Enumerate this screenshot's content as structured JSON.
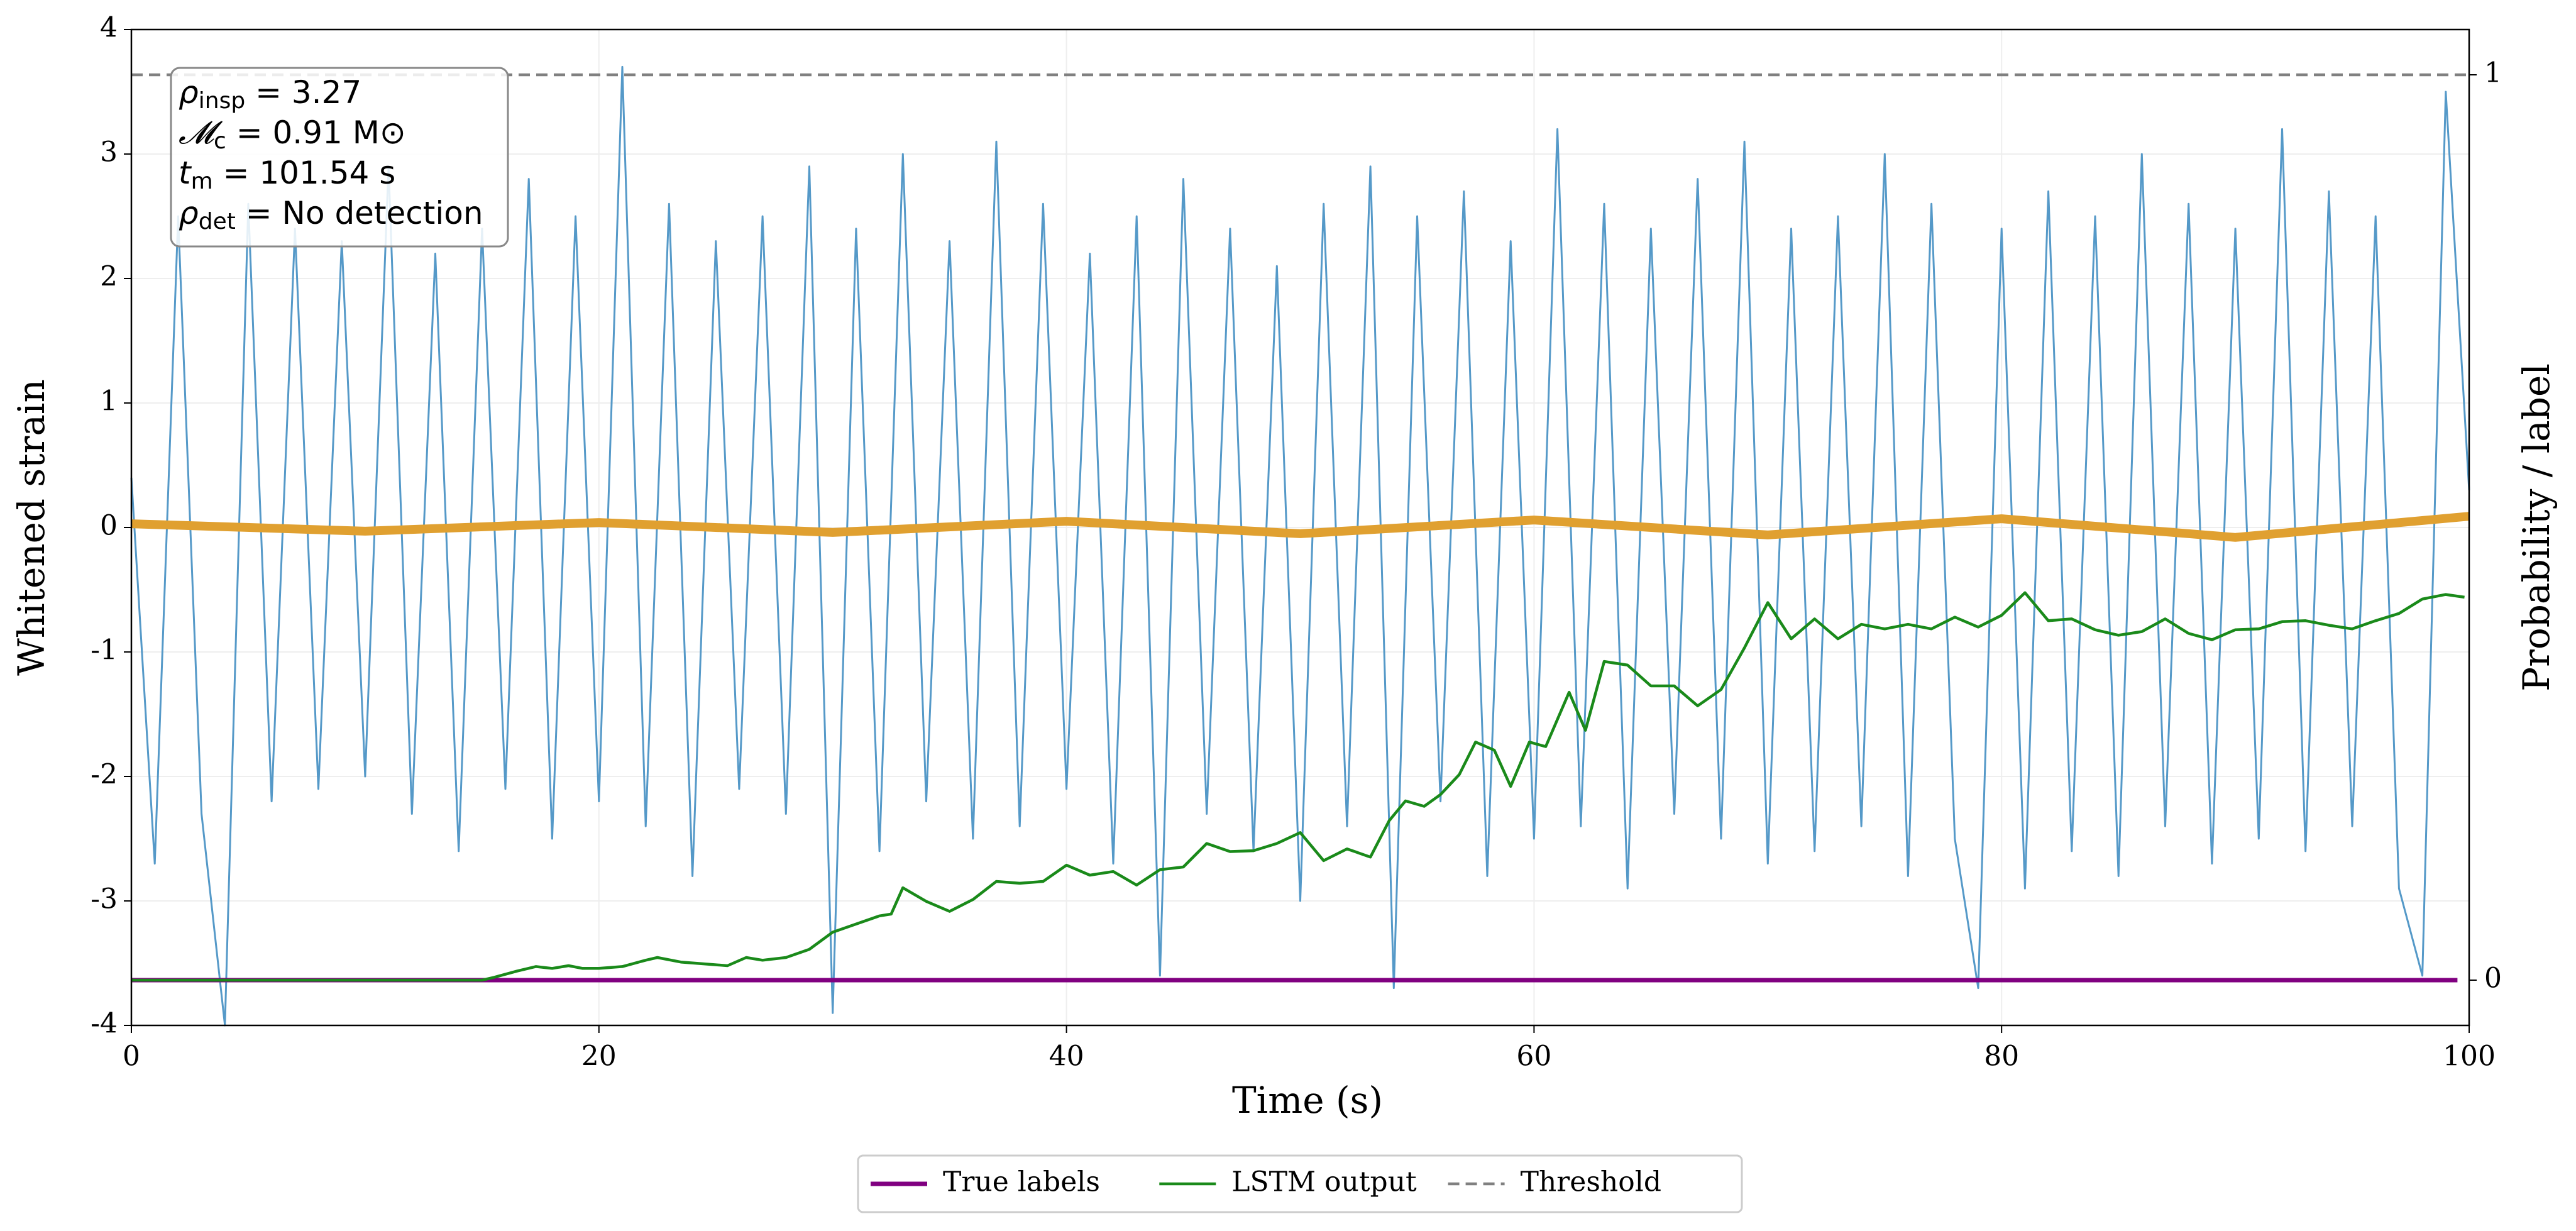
{
  "chart_data": {
    "type": "line",
    "xlabel": "Time (s)",
    "ylabel": "Whitened strain",
    "y2label": "Probability / label",
    "xlim": [
      0,
      100
    ],
    "ylim": [
      -4,
      4
    ],
    "y2lim": [
      -0.05,
      1.05
    ],
    "xticks": [
      0,
      20,
      40,
      60,
      80,
      100
    ],
    "yticks": [
      -4,
      -3,
      -2,
      -1,
      0,
      1,
      2,
      3,
      4
    ],
    "y2ticks": [
      0,
      1
    ],
    "grid": true,
    "legend": "bottom",
    "annotation": [
      {
        "main": "ρ",
        "sub": "insp",
        "rest": " = 3.27"
      },
      {
        "main": "𝓜",
        "sub": "c",
        "rest": " = 0.91 M⊙"
      },
      {
        "main": "t",
        "sub": "m",
        "rest": " = 101.54 s"
      },
      {
        "main": "ρ",
        "sub": "det",
        "rest": " = No detection"
      }
    ],
    "series": [
      {
        "color": "#5599c8",
        "x": [
          0,
          1,
          2,
          3,
          4,
          5,
          6,
          7,
          8,
          9,
          10,
          11,
          12,
          13,
          14,
          15,
          16,
          17,
          18,
          19,
          20,
          21,
          22,
          23,
          24,
          25,
          26,
          27,
          28,
          29,
          30,
          31,
          32,
          33,
          34,
          35,
          36,
          37,
          38,
          39,
          40,
          41,
          42,
          43,
          44,
          45,
          46,
          47,
          48,
          49,
          50,
          51,
          52,
          53,
          54,
          55,
          56,
          57,
          58,
          59,
          60,
          61,
          62,
          63,
          64,
          65,
          66,
          67,
          68,
          69,
          70,
          71,
          72,
          73,
          74,
          75,
          76,
          77,
          78,
          79,
          80,
          81,
          82,
          83,
          84,
          85,
          86,
          87,
          88,
          89,
          90,
          91,
          92,
          93,
          94,
          95,
          96,
          97,
          98,
          99,
          100
        ],
        "values": [
          0.4,
          -2.7,
          2.5,
          -2.3,
          -4.0,
          2.6,
          -2.2,
          2.4,
          -2.1,
          2.3,
          -2.0,
          2.9,
          -2.3,
          2.2,
          -2.6,
          2.4,
          -2.1,
          2.8,
          -2.5,
          2.5,
          -2.2,
          3.7,
          -2.4,
          2.6,
          -2.8,
          2.3,
          -2.1,
          2.5,
          -2.3,
          2.9,
          -3.9,
          2.4,
          -2.6,
          3.0,
          -2.2,
          2.3,
          -2.5,
          3.1,
          -2.4,
          2.6,
          -2.1,
          2.2,
          -2.7,
          2.5,
          -3.6,
          2.8,
          -2.3,
          2.4,
          -2.6,
          2.1,
          -3.0,
          2.6,
          -2.4,
          2.9,
          -3.7,
          2.5,
          -2.2,
          2.7,
          -2.8,
          2.3,
          -2.5,
          3.2,
          -2.4,
          2.6,
          -2.9,
          2.4,
          -2.3,
          2.8,
          -2.5,
          3.1,
          -2.7,
          2.4,
          -2.6,
          2.5,
          -2.4,
          3.0,
          -2.8,
          2.6,
          -2.5,
          -3.7,
          2.4,
          -2.9,
          2.7,
          -2.6,
          2.5,
          -2.8,
          3.0,
          -2.4,
          2.6,
          -2.7,
          2.4,
          -2.5,
          3.2,
          -2.6,
          2.7,
          -2.4,
          2.5,
          -2.9,
          -3.6,
          3.5,
          0.3
        ]
      },
      {
        "color": "#e0a030",
        "x": [
          0,
          10,
          20,
          30,
          40,
          50,
          60,
          70,
          80,
          90,
          100
        ],
        "values": [
          0.03,
          -0.03,
          0.04,
          -0.04,
          0.05,
          -0.05,
          0.06,
          -0.06,
          0.07,
          -0.08,
          0.09
        ]
      },
      {
        "name": "True labels",
        "color": "#800080",
        "axis": "y2",
        "x": [
          0,
          99.5
        ],
        "values": [
          0,
          0
        ]
      },
      {
        "name": "LSTM output",
        "color": "#1a8a1a",
        "axis": "y2",
        "x": [
          0,
          15,
          15.5,
          16.5,
          17.3,
          18,
          18.7,
          19.3,
          20,
          21,
          22,
          22.5,
          23.5,
          24.5,
          25.5,
          26.3,
          27,
          28,
          29,
          30,
          31,
          32,
          32.5,
          33,
          34,
          35,
          36,
          37,
          38,
          39,
          40,
          41,
          42,
          43,
          44,
          45,
          46,
          47,
          48,
          49,
          50,
          51,
          52,
          53,
          53.8,
          54.5,
          55.3,
          56,
          56.8,
          57.5,
          58.3,
          59,
          59.8,
          60.5,
          61.5,
          62.2,
          63,
          64,
          65,
          66,
          67,
          68,
          69,
          70,
          71,
          72,
          73,
          74,
          75,
          76,
          77,
          78,
          79,
          80,
          81,
          82,
          83,
          84,
          85,
          86,
          87,
          88,
          89,
          90,
          91,
          92,
          93,
          94,
          95,
          96,
          97,
          98,
          99,
          99.8
        ],
        "values": [
          0,
          0,
          0.003,
          0.01,
          0.015,
          0.013,
          0.016,
          0.013,
          0.013,
          0.015,
          0.022,
          0.025,
          0.02,
          0.018,
          0.016,
          0.025,
          0.022,
          0.025,
          0.034,
          0.053,
          0.062,
          0.071,
          0.073,
          0.102,
          0.087,
          0.076,
          0.089,
          0.109,
          0.107,
          0.109,
          0.127,
          0.116,
          0.12,
          0.105,
          0.122,
          0.125,
          0.151,
          0.142,
          0.143,
          0.151,
          0.163,
          0.132,
          0.145,
          0.136,
          0.176,
          0.198,
          0.192,
          0.205,
          0.227,
          0.263,
          0.254,
          0.214,
          0.263,
          0.258,
          0.318,
          0.276,
          0.352,
          0.348,
          0.325,
          0.325,
          0.303,
          0.321,
          0.367,
          0.417,
          0.377,
          0.399,
          0.377,
          0.393,
          0.388,
          0.393,
          0.388,
          0.401,
          0.39,
          0.403,
          0.428,
          0.397,
          0.399,
          0.387,
          0.381,
          0.385,
          0.399,
          0.383,
          0.376,
          0.387,
          0.388,
          0.396,
          0.397,
          0.392,
          0.388,
          0.397,
          0.405,
          0.421,
          0.426,
          0.423
        ]
      },
      {
        "name": "Threshold",
        "color": "#808080",
        "axis": "y2",
        "linestyle": "dashed",
        "x": [
          0,
          100
        ],
        "values": [
          1,
          1
        ]
      }
    ]
  }
}
